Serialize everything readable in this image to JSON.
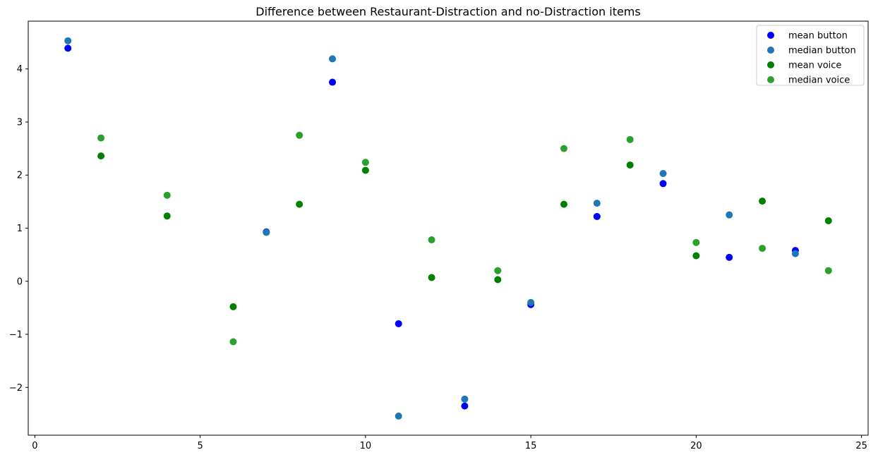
{
  "chart_data": {
    "type": "scatter",
    "title": "Difference between Restaurant-Distraction and no-Distraction items",
    "xlabel": "",
    "ylabel": "",
    "xlim": [
      -0.2,
      25.2
    ],
    "ylim": [
      -2.9,
      4.9
    ],
    "xticks": [
      0,
      5,
      10,
      15,
      20,
      25
    ],
    "yticks": [
      -2,
      -1,
      0,
      1,
      2,
      3,
      4
    ],
    "grid": false,
    "legend_position": "top-right",
    "series": [
      {
        "name": "mean button",
        "color": "#0000ff",
        "points": [
          [
            1,
            4.39
          ],
          [
            7,
            0.93
          ],
          [
            9,
            3.75
          ],
          [
            11,
            -0.8
          ],
          [
            13,
            -2.35
          ],
          [
            15,
            -0.44
          ],
          [
            17,
            1.22
          ],
          [
            19,
            1.84
          ],
          [
            21,
            0.45
          ],
          [
            23,
            0.58
          ]
        ]
      },
      {
        "name": "median button",
        "color": "#1f77b4",
        "points": [
          [
            1,
            4.53
          ],
          [
            7,
            0.92
          ],
          [
            9,
            4.19
          ],
          [
            11,
            -2.54
          ],
          [
            13,
            -2.22
          ],
          [
            15,
            -0.4
          ],
          [
            17,
            1.47
          ],
          [
            19,
            2.03
          ],
          [
            21,
            1.25
          ],
          [
            23,
            0.52
          ]
        ]
      },
      {
        "name": "mean voice",
        "color": "#008000",
        "points": [
          [
            2,
            2.36
          ],
          [
            4,
            1.23
          ],
          [
            6,
            -0.48
          ],
          [
            8,
            1.45
          ],
          [
            10,
            2.09
          ],
          [
            12,
            0.07
          ],
          [
            14,
            0.03
          ],
          [
            16,
            1.45
          ],
          [
            18,
            2.19
          ],
          [
            20,
            0.48
          ],
          [
            22,
            1.51
          ],
          [
            24,
            1.14
          ]
        ]
      },
      {
        "name": "median voice",
        "color": "#2ca02c",
        "points": [
          [
            2,
            2.7
          ],
          [
            4,
            1.62
          ],
          [
            6,
            -1.14
          ],
          [
            8,
            2.75
          ],
          [
            10,
            2.24
          ],
          [
            12,
            0.78
          ],
          [
            14,
            0.2
          ],
          [
            16,
            2.5
          ],
          [
            18,
            2.67
          ],
          [
            20,
            0.73
          ],
          [
            22,
            0.62
          ],
          [
            24,
            0.2
          ]
        ]
      }
    ]
  }
}
